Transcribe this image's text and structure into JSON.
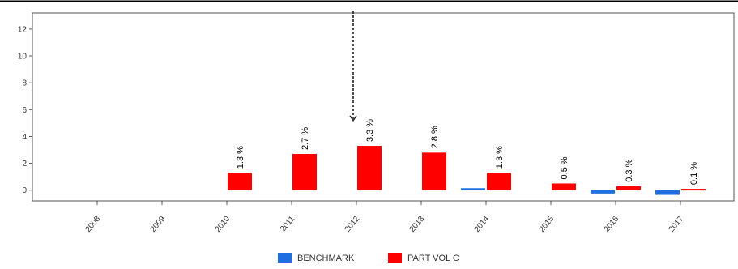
{
  "chart_data": {
    "type": "bar",
    "categories": [
      "2008",
      "2009",
      "2010",
      "2011",
      "2012",
      "2013",
      "2014",
      "2015",
      "2016",
      "2017"
    ],
    "series": [
      {
        "name": "BENCHMARK",
        "color": "#1f6fe0",
        "values": [
          null,
          null,
          null,
          null,
          null,
          null,
          0.15,
          null,
          -0.25,
          -0.35
        ]
      },
      {
        "name": "PART VOL C",
        "color": "#ff0000",
        "values": [
          null,
          null,
          1.3,
          2.7,
          3.3,
          2.8,
          1.3,
          0.5,
          0.3,
          0.1
        ],
        "labels": [
          null,
          null,
          "1.3 %",
          "2.7 %",
          "3.3 %",
          "2.8 %",
          "1.3 %",
          "0.5 %",
          "0.3 %",
          "0.1 %"
        ]
      }
    ],
    "y_ticks": [
      "0",
      "2",
      "4",
      "6",
      "8",
      "10",
      "12"
    ],
    "ylim": [
      -0.8,
      13.2
    ],
    "grid": false,
    "legend_position": "bottom-center",
    "annotation": {
      "type": "dashed-arrow",
      "category": "2012",
      "direction": "down"
    }
  }
}
